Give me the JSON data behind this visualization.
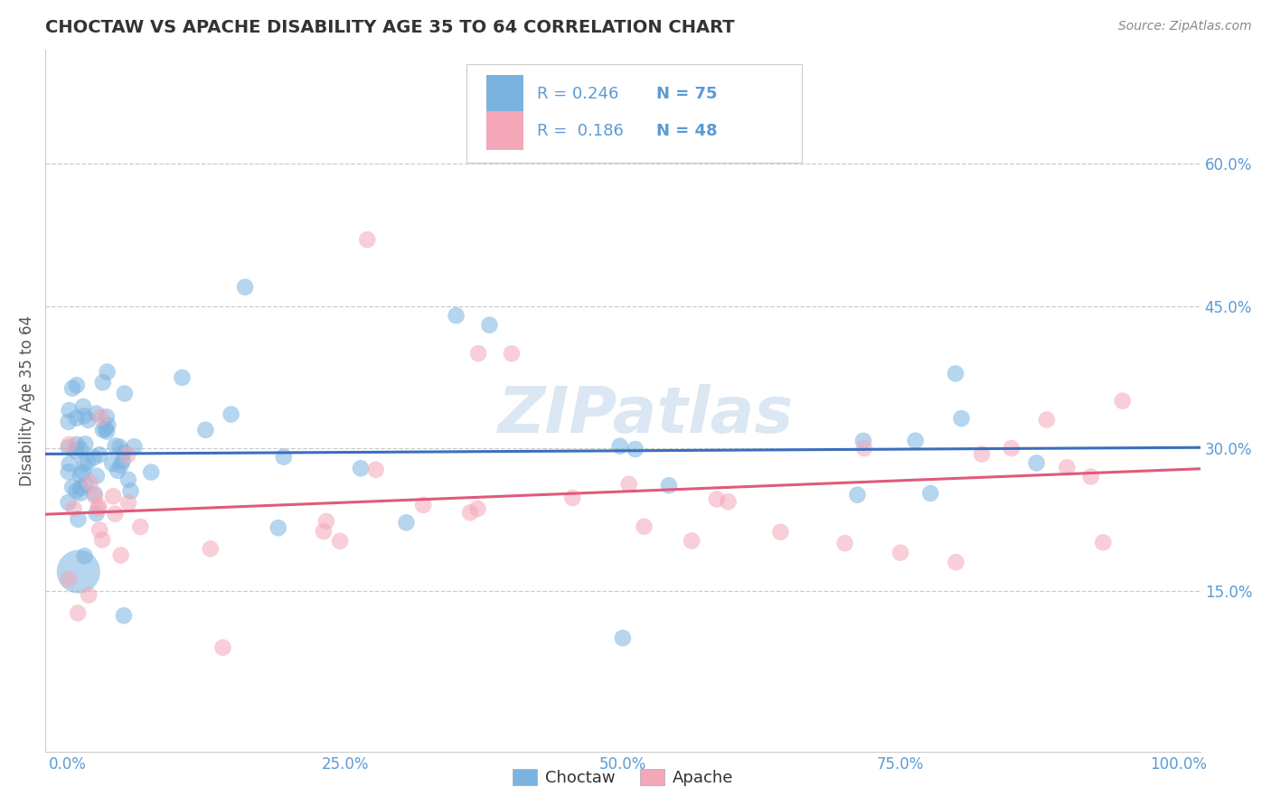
{
  "title": "CHOCTAW VS APACHE DISABILITY AGE 35 TO 64 CORRELATION CHART",
  "source": "Source: ZipAtlas.com",
  "ylabel": "Disability Age 35 to 64",
  "xlim": [
    -0.02,
    1.02
  ],
  "ylim": [
    -0.02,
    0.72
  ],
  "xticks": [
    0.0,
    0.25,
    0.5,
    0.75,
    1.0
  ],
  "xtick_labels": [
    "0.0%",
    "25.0%",
    "50.0%",
    "75.0%",
    "100.0%"
  ],
  "yticks": [
    0.15,
    0.3,
    0.45,
    0.6
  ],
  "ytick_labels": [
    "15.0%",
    "30.0%",
    "45.0%",
    "60.0%"
  ],
  "watermark": "ZIPatlas",
  "choctaw_color": "#7ab3e0",
  "apache_color": "#f4a7b9",
  "choctaw_line_color": "#3a6fbd",
  "apache_line_color": "#e05a7a",
  "background_color": "#ffffff",
  "grid_color": "#cccccc",
  "title_color": "#333333",
  "tick_color": "#5b9bd5",
  "ylabel_color": "#555555"
}
